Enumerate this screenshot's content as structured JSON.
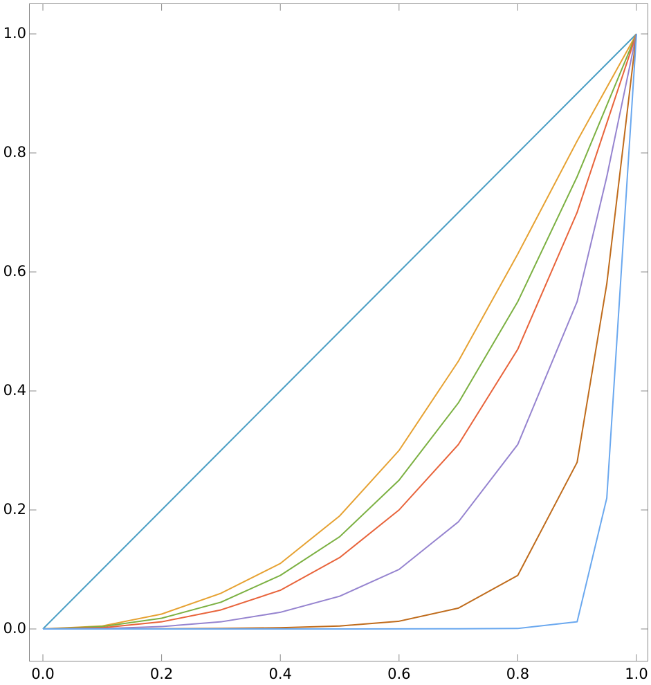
{
  "chart_data": {
    "type": "line",
    "x": [
      0,
      0.1,
      0.2,
      0.3,
      0.4,
      0.5,
      0.6,
      0.7,
      0.8,
      0.9,
      0.95,
      1
    ],
    "series": [
      {
        "color": "#4a9ec4",
        "values": [
          0,
          0.1,
          0.2,
          0.3,
          0.4,
          0.5,
          0.6,
          0.7,
          0.8,
          0.9,
          0.95,
          1
        ]
      },
      {
        "color": "#e6a131",
        "values": [
          0,
          0.005,
          0.025,
          0.06,
          0.11,
          0.19,
          0.3,
          0.45,
          0.63,
          0.82,
          0.91,
          1
        ]
      },
      {
        "color": "#7bb041",
        "values": [
          0,
          0.004,
          0.018,
          0.045,
          0.09,
          0.155,
          0.25,
          0.38,
          0.55,
          0.76,
          0.88,
          1
        ]
      },
      {
        "color": "#e8633a",
        "values": [
          0,
          0.002,
          0.012,
          0.032,
          0.065,
          0.12,
          0.2,
          0.31,
          0.47,
          0.7,
          0.85,
          1
        ]
      },
      {
        "color": "#9583cf",
        "values": [
          0,
          0.0005,
          0.004,
          0.012,
          0.028,
          0.055,
          0.1,
          0.18,
          0.31,
          0.55,
          0.76,
          1
        ]
      },
      {
        "color": "#bf6b1b",
        "values": [
          0,
          0,
          0.0003,
          0.0008,
          0.002,
          0.005,
          0.013,
          0.035,
          0.09,
          0.28,
          0.58,
          1
        ]
      },
      {
        "color": "#6aa8ef",
        "values": [
          0,
          0,
          0,
          0,
          0,
          0,
          0.0001,
          0.0003,
          0.0008,
          0.012,
          0.22,
          1
        ]
      }
    ],
    "xlim": [
      0,
      1
    ],
    "ylim": [
      0,
      1
    ],
    "xticks": [
      {
        "value": 0,
        "label": "0.0"
      },
      {
        "value": 0.2,
        "label": "0.2"
      },
      {
        "value": 0.4,
        "label": "0.4"
      },
      {
        "value": 0.6,
        "label": "0.6"
      },
      {
        "value": 0.8,
        "label": "0.8"
      },
      {
        "value": 1,
        "label": "1.0"
      }
    ],
    "yticks": [
      {
        "value": 0,
        "label": "0.0"
      },
      {
        "value": 0.2,
        "label": "0.2"
      },
      {
        "value": 0.4,
        "label": "0.4"
      },
      {
        "value": 0.6,
        "label": "0.6"
      },
      {
        "value": 0.8,
        "label": "0.8"
      },
      {
        "value": 1,
        "label": "1.0"
      }
    ],
    "grid": false
  }
}
